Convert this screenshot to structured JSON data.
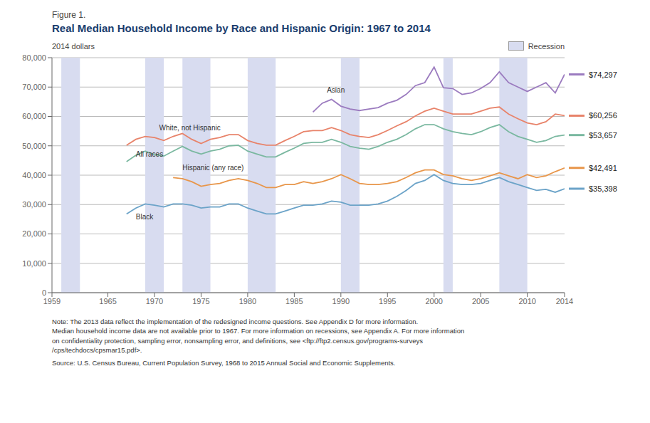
{
  "chart_data": {
    "type": "line",
    "subtitle": "Figure 1.",
    "title": "Real Median Household Income by Race and Hispanic Origin: 1967 to 2014",
    "y_label": "2014 dollars",
    "x": [
      1967,
      1968,
      1969,
      1970,
      1971,
      1972,
      1973,
      1974,
      1975,
      1976,
      1977,
      1978,
      1979,
      1980,
      1981,
      1982,
      1983,
      1984,
      1985,
      1986,
      1987,
      1988,
      1989,
      1990,
      1991,
      1992,
      1993,
      1994,
      1995,
      1996,
      1997,
      1998,
      1999,
      2000,
      2001,
      2002,
      2003,
      2004,
      2005,
      2006,
      2007,
      2008,
      2009,
      2010,
      2011,
      2012,
      2013,
      2014
    ],
    "xlim": [
      1959,
      2014
    ],
    "xticks": [
      1959,
      1965,
      1970,
      1975,
      1980,
      1985,
      1990,
      1995,
      2000,
      2005,
      2010,
      2014
    ],
    "ylim": [
      0,
      80000
    ],
    "yticks": [
      0,
      {
        "value": 10000,
        "label": "10,000"
      },
      {
        "value": 20000,
        "label": "20,000"
      },
      {
        "value": 30000,
        "label": "30,000"
      },
      {
        "value": 40000,
        "label": "40,000"
      },
      {
        "value": 50000,
        "label": "50,000"
      },
      {
        "value": 60000,
        "label": "60,000"
      },
      {
        "value": 70000,
        "label": "70,000"
      },
      {
        "value": 80000,
        "label": "80,000"
      }
    ],
    "grid": true,
    "legend": "top-right",
    "recessions": {
      "name": "Recession",
      "color": "#d8dcf0",
      "spans": [
        [
          1960,
          1962
        ],
        [
          1969,
          1971
        ],
        [
          1973,
          1976
        ],
        [
          1980,
          1981
        ],
        [
          1981,
          1983
        ],
        [
          1990,
          1992
        ],
        [
          2001,
          2002
        ],
        [
          2007,
          2010
        ]
      ]
    },
    "series": [
      {
        "name": "All races",
        "color": "#7ab8a0",
        "label_at": {
          "x": 1968,
          "y": 46200
        },
        "end_label": {
          "value": 53657,
          "label": "$53,657"
        },
        "values": [
          44600,
          46800,
          48200,
          47000,
          46500,
          48200,
          49800,
          48200,
          47200,
          48200,
          48800,
          50000,
          50200,
          48200,
          47200,
          46200,
          46200,
          47800,
          49200,
          50800,
          51200,
          51200,
          52200,
          51200,
          49800,
          49200,
          48800,
          49800,
          51200,
          52200,
          53800,
          55800,
          57200,
          57200,
          55800,
          54800,
          54200,
          53800,
          54800,
          56200,
          57200,
          54800,
          53200,
          52200,
          51200,
          51800,
          53200,
          53657
        ]
      },
      {
        "name": "White, not Hispanic",
        "color": "#e8836a",
        "label_at": {
          "x": 1970.5,
          "y": 55200
        },
        "end_label": {
          "value": 60256,
          "label": "$60,256"
        },
        "values": [
          50200,
          52200,
          53200,
          52800,
          51800,
          53200,
          54200,
          52200,
          50800,
          52200,
          52800,
          53800,
          53800,
          51800,
          50800,
          50200,
          50200,
          51800,
          53200,
          54800,
          55200,
          55200,
          56200,
          55200,
          53800,
          53200,
          52800,
          53800,
          55200,
          56800,
          58200,
          60200,
          61800,
          62800,
          61800,
          60800,
          60800,
          60800,
          61800,
          62800,
          63200,
          60800,
          59200,
          57800,
          57200,
          58200,
          60800,
          60256
        ]
      },
      {
        "name": "Asian",
        "color": "#9b7bbf",
        "label_at": {
          "x": 1988.5,
          "y": 68200
        },
        "end_label": {
          "value": 74297,
          "label": "$74,297"
        },
        "values": [
          null,
          null,
          null,
          null,
          null,
          null,
          null,
          null,
          null,
          null,
          null,
          null,
          null,
          null,
          null,
          null,
          null,
          null,
          null,
          null,
          61500,
          64500,
          65800,
          63500,
          62500,
          62000,
          62500,
          63000,
          64500,
          65500,
          67500,
          70500,
          71500,
          76800,
          69800,
          69500,
          67500,
          68000,
          69500,
          71500,
          75200,
          71500,
          70000,
          68500,
          70000,
          71500,
          68000,
          74297
        ]
      },
      {
        "name": "Hispanic (any race)",
        "color": "#e8964a",
        "label_at": {
          "x": 1973,
          "y": 41600
        },
        "end_label": {
          "value": 42491,
          "label": "$42,491"
        },
        "values": [
          null,
          null,
          null,
          null,
          null,
          39200,
          38800,
          37800,
          36200,
          36800,
          37200,
          38200,
          38800,
          38200,
          37200,
          35800,
          35800,
          36800,
          36800,
          37800,
          37200,
          37800,
          38800,
          40200,
          38800,
          37200,
          36800,
          36800,
          37200,
          37800,
          39200,
          40800,
          41800,
          41800,
          40200,
          39800,
          38800,
          38200,
          38800,
          39800,
          40800,
          39800,
          38800,
          40200,
          39200,
          39800,
          41200,
          42491
        ]
      },
      {
        "name": "Black",
        "color": "#6ba3c8",
        "label_at": {
          "x": 1968,
          "y": 25000
        },
        "end_label": {
          "value": 35398,
          "label": "$35,398"
        },
        "values": [
          26800,
          28800,
          30200,
          29800,
          29200,
          30200,
          30200,
          29800,
          28800,
          29200,
          29200,
          30200,
          30200,
          28800,
          27800,
          26800,
          26800,
          27800,
          28800,
          29800,
          29800,
          30200,
          31200,
          30800,
          29800,
          29800,
          29800,
          30200,
          31200,
          32800,
          34800,
          37200,
          38200,
          40200,
          38200,
          37200,
          36800,
          36800,
          37200,
          38200,
          39200,
          37800,
          36800,
          35800,
          34800,
          35200,
          34200,
          35398
        ]
      }
    ],
    "note": "Note: The 2013 data reflect the implementation of the redesigned income questions. See Appendix D for more information.\nMedian household income data are not available prior to 1967. For more information on recessions, see Appendix A. For more information\non confidentiality protection, sampling error, nonsampling error, and definitions, see <ftp://ftp2.census.gov/programs-surveys\n/cps/techdocs/cpsmar15.pdf>.",
    "source": "Source: U.S. Census Bureau, Current Population Survey, 1968 to 2015 Annual Social and Economic Supplements."
  }
}
